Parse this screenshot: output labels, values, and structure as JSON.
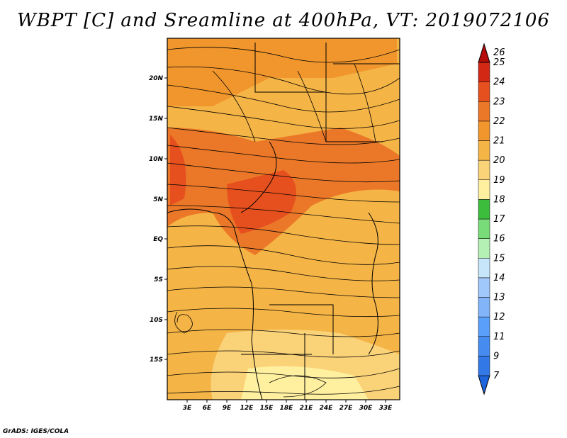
{
  "title": "WBPT [C] and Sreamline at 400hPa, VT: 2019072106",
  "credit": "GrADS: IGES/COLA",
  "map": {
    "lat_labels": [
      "20N",
      "15N",
      "10N",
      "5N",
      "EQ",
      "5S",
      "10S",
      "15S"
    ],
    "lon_labels": [
      "3E",
      "6E",
      "9E",
      "12E",
      "15E",
      "18E",
      "21E",
      "24E",
      "27E",
      "30E",
      "33E"
    ]
  },
  "colorbar": {
    "levels": [
      "7",
      "9",
      "11",
      "12",
      "13",
      "14",
      "15",
      "16",
      "17",
      "18",
      "19",
      "20",
      "21",
      "22",
      "23",
      "24",
      "25",
      "26"
    ],
    "colors": [
      "#1e64dc",
      "#3278e6",
      "#468cf0",
      "#5aa0fa",
      "#82b4fa",
      "#a0c8fa",
      "#c8e6fa",
      "#b4f0b4",
      "#78dc78",
      "#3cbe3c",
      "#fff0a0",
      "#fad278",
      "#f5b446",
      "#f0962d",
      "#eb7828",
      "#e6501e",
      "#d22814",
      "#b40a0a"
    ]
  }
}
